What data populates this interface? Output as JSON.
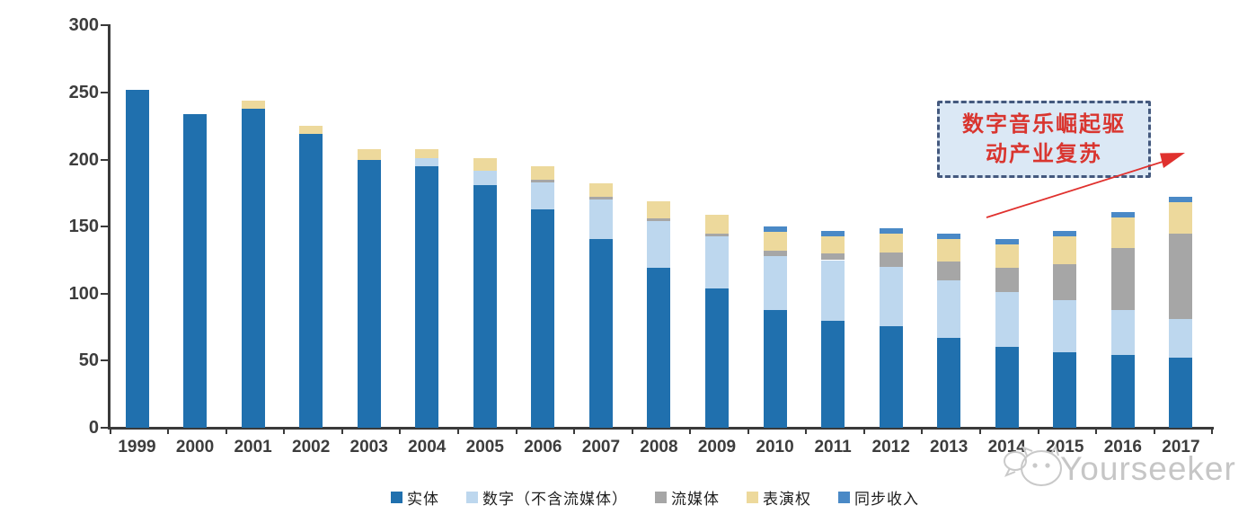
{
  "chart_data": {
    "type": "bar",
    "stacked": true,
    "title": "",
    "xlabel": "",
    "ylabel": "",
    "ylim": [
      0,
      300
    ],
    "y_ticks": [
      0,
      50,
      100,
      150,
      200,
      250,
      300
    ],
    "grid": false,
    "legend_position": "bottom",
    "categories": [
      "1999",
      "2000",
      "2001",
      "2002",
      "2003",
      "2004",
      "2005",
      "2006",
      "2007",
      "2008",
      "2009",
      "2010",
      "2011",
      "2012",
      "2013",
      "2014",
      "2015",
      "2016",
      "2017"
    ],
    "series": [
      {
        "name": "实体",
        "color": "#2070AE",
        "values": [
          252,
          234,
          238,
          219,
          200,
          195,
          181,
          163,
          141,
          119,
          104,
          88,
          80,
          76,
          67,
          60,
          56,
          54,
          52
        ]
      },
      {
        "name": "数字（不含流媒体）",
        "color": "#BDD7EE",
        "values": [
          0,
          0,
          0,
          0,
          0,
          6,
          11,
          20,
          29,
          35,
          39,
          40,
          45,
          44,
          43,
          41,
          39,
          34,
          29
        ]
      },
      {
        "name": "流媒体",
        "color": "#A6A6A6",
        "values": [
          0,
          0,
          0,
          0,
          0,
          0,
          0,
          2,
          2,
          2,
          2,
          4,
          5,
          11,
          14,
          18,
          27,
          46,
          64
        ]
      },
      {
        "name": "表演权",
        "color": "#EDD99C",
        "values": [
          0,
          0,
          6,
          6,
          8,
          7,
          9,
          10,
          10,
          13,
          14,
          14,
          13,
          14,
          17,
          18,
          21,
          23,
          23
        ]
      },
      {
        "name": "同步收入",
        "color": "#4A89C6",
        "values": [
          0,
          0,
          0,
          0,
          0,
          0,
          0,
          0,
          0,
          0,
          0,
          4,
          4,
          4,
          4,
          4,
          4,
          4,
          4
        ]
      }
    ],
    "totals": [
      252,
      234,
      244,
      225,
      208,
      208,
      201,
      195,
      182,
      169,
      159,
      150,
      147,
      149,
      145,
      141,
      147,
      161,
      172
    ]
  },
  "annotation": {
    "line1": "数字音乐崛起驱",
    "line2": "动产业复苏",
    "text_color": "#d9352f",
    "box_fill": "#dbe8f5",
    "box_border": "#44597e",
    "arrow_color": "#e0312e"
  },
  "watermark": {
    "text": "Yourseeker",
    "color": "#c6c6c6",
    "logo": "cat-chat-logo"
  }
}
